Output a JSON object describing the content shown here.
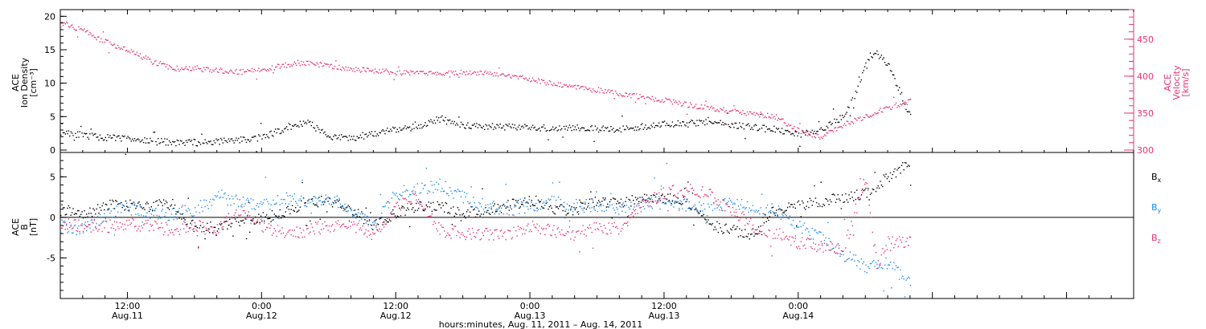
{
  "chart_data": [
    {
      "type": "scatter",
      "panel": "top",
      "ylabel": [
        "ACE",
        "Ion Density",
        "[cm⁻³]"
      ],
      "ylabel_right": [
        "ACE",
        "Velocity",
        "[km/s]"
      ],
      "ylim": [
        0,
        21
      ],
      "yticks": [
        0,
        5,
        10,
        15,
        20
      ],
      "ylim_right": [
        300,
        490
      ],
      "yticks_right": [
        300,
        350,
        400,
        450
      ],
      "series": [
        {
          "axis": "left",
          "color": "#000000",
          "x_hours": [
            0,
            2,
            4,
            6,
            8,
            10,
            12,
            14,
            16,
            18,
            20,
            22,
            24,
            26,
            28,
            30,
            32,
            34,
            36,
            38,
            40,
            42,
            44,
            46,
            48,
            50,
            52,
            54,
            56,
            58,
            60,
            62,
            64,
            66,
            68,
            69,
            70,
            71,
            72,
            73,
            74,
            75,
            76
          ],
          "values": [
            2.8,
            2.3,
            1.9,
            1.8,
            1.4,
            1.2,
            1.2,
            1.3,
            1.6,
            2.0,
            3.2,
            4.3,
            2.1,
            1.8,
            2.6,
            3.1,
            3.6,
            4.8,
            3.8,
            3.6,
            3.5,
            3.4,
            3.4,
            3.4,
            3.3,
            3.2,
            3.6,
            3.9,
            4.0,
            4.3,
            3.8,
            3.5,
            3.1,
            2.4,
            3.2,
            4.0,
            5.2,
            8.0,
            13.0,
            14.5,
            13.0,
            9.0,
            5.0
          ]
        },
        {
          "axis": "right",
          "color": "#e8336e",
          "x_hours": [
            0,
            2,
            4,
            6,
            8,
            10,
            12,
            14,
            16,
            18,
            20,
            22,
            24,
            26,
            28,
            30,
            32,
            34,
            36,
            38,
            40,
            42,
            44,
            46,
            48,
            50,
            52,
            54,
            56,
            58,
            60,
            62,
            64,
            66,
            68,
            70,
            72,
            74,
            76
          ],
          "values": [
            474,
            462,
            447,
            435,
            422,
            411,
            410,
            409,
            406,
            410,
            415,
            418,
            415,
            410,
            408,
            406,
            404,
            405,
            406,
            405,
            402,
            396,
            390,
            387,
            382,
            377,
            372,
            368,
            362,
            358,
            353,
            350,
            345,
            327,
            318,
            335,
            346,
            358,
            367
          ]
        }
      ]
    },
    {
      "type": "scatter",
      "panel": "bottom",
      "ylabel": [
        "ACE",
        "B",
        "[nT]"
      ],
      "ylim": [
        -10,
        8
      ],
      "yticks": [
        -5,
        0,
        5
      ],
      "xlabel": "hours:minutes, Aug. 11, 2011 – Aug. 14, 2011",
      "xticks": [
        {
          "hours": 6,
          "time": "12:00",
          "date": "Aug.11"
        },
        {
          "hours": 18,
          "time": "0:00",
          "date": "Aug.12"
        },
        {
          "hours": 30,
          "time": "12:00",
          "date": "Aug.12"
        },
        {
          "hours": 42,
          "time": "0:00",
          "date": "Aug.13"
        },
        {
          "hours": 54,
          "time": "12:00",
          "date": "Aug.13"
        },
        {
          "hours": 66,
          "time": "0:00",
          "date": "Aug.14"
        }
      ],
      "series": [
        {
          "name": "Bx",
          "color": "#000000",
          "x_hours": [
            0,
            2,
            4,
            6,
            8,
            10,
            12,
            14,
            16,
            18,
            20,
            22,
            24,
            26,
            28,
            30,
            32,
            34,
            36,
            38,
            40,
            42,
            44,
            46,
            48,
            50,
            52,
            54,
            56,
            58,
            60,
            62,
            63,
            64,
            66,
            68,
            70,
            72,
            74,
            76
          ],
          "values": [
            1.0,
            0.5,
            1.5,
            1.5,
            1.5,
            1.6,
            -1.5,
            -1.0,
            -0.5,
            0.0,
            0.5,
            2.0,
            2.0,
            1.0,
            -1.0,
            0.5,
            1.5,
            1.5,
            0.5,
            1.0,
            1.5,
            2.0,
            1.0,
            1.0,
            2.0,
            2.0,
            2.2,
            2.5,
            2.0,
            -1.0,
            -1.5,
            -2.0,
            0.0,
            1.0,
            1.5,
            2.0,
            2.5,
            3.0,
            5.0,
            7.0
          ]
        },
        {
          "name": "By",
          "color": "#1f8ef0",
          "x_hours": [
            0,
            2,
            4,
            6,
            8,
            10,
            12,
            14,
            16,
            18,
            20,
            22,
            24,
            26,
            28,
            30,
            32,
            34,
            36,
            38,
            40,
            42,
            44,
            46,
            48,
            50,
            52,
            54,
            56,
            58,
            60,
            62,
            64,
            66,
            68,
            70,
            72,
            74,
            75,
            76
          ],
          "values": [
            -1.0,
            -1.5,
            0.5,
            1.5,
            0.5,
            0.5,
            1.0,
            2.5,
            2.0,
            1.5,
            2.5,
            2.0,
            2.5,
            1.0,
            -1.0,
            3.0,
            3.5,
            4.0,
            2.5,
            1.5,
            1.0,
            1.5,
            2.0,
            1.5,
            1.5,
            1.0,
            1.5,
            2.0,
            1.5,
            1.0,
            2.0,
            1.0,
            1.0,
            -1.0,
            -2.5,
            -4.5,
            -6.0,
            -5.5,
            -7.0,
            -8.0
          ]
        },
        {
          "name": "Bz",
          "color": "#e8336e",
          "x_hours": [
            0,
            2,
            4,
            6,
            8,
            10,
            12,
            14,
            16,
            18,
            20,
            22,
            24,
            26,
            28,
            30,
            32,
            34,
            36,
            38,
            40,
            42,
            44,
            46,
            48,
            50,
            52,
            54,
            56,
            58,
            60,
            62,
            64,
            66,
            68,
            70,
            72,
            73,
            74,
            76
          ],
          "values": [
            -0.5,
            -1.0,
            -1.0,
            -1.0,
            -1.0,
            -1.5,
            -1.0,
            -1.5,
            1.0,
            -1.0,
            -2.0,
            -1.5,
            -1.0,
            -1.0,
            -2.0,
            1.5,
            2.5,
            -1.5,
            -2.0,
            -2.0,
            -2.0,
            -1.0,
            -1.5,
            -2.0,
            -1.0,
            -1.5,
            1.5,
            3.0,
            3.5,
            3.0,
            1.0,
            -1.0,
            -2.0,
            -3.0,
            -3.5,
            -4.0,
            5.0,
            -6.0,
            -3.0,
            -3.0
          ]
        }
      ]
    }
  ],
  "labels": {
    "bx": "B",
    "bx_sub": "x",
    "by": "B",
    "by_sub": "y",
    "bz": "B",
    "bz_sub": "z"
  },
  "colors": {
    "density": "#000000",
    "velocity": "#e8336e",
    "bx": "#000000",
    "by": "#1f8ef0",
    "bz": "#e8336e"
  }
}
